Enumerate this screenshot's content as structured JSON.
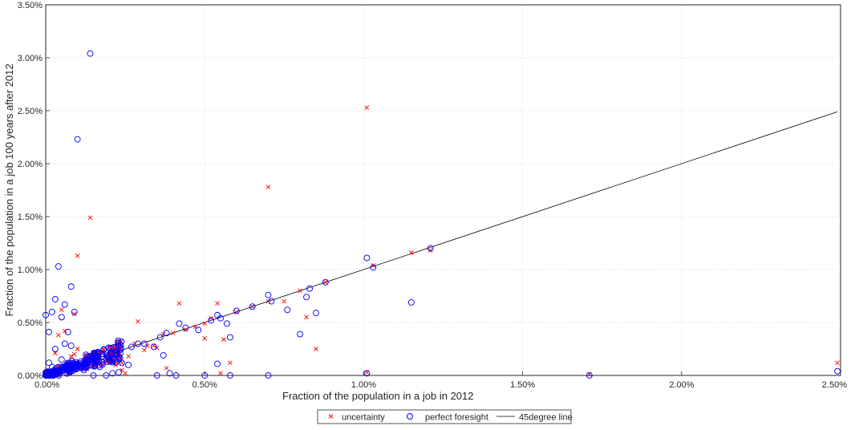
{
  "chart_data": {
    "type": "scatter",
    "xlabel": "Fraction of the population in a job in 2012",
    "ylabel": "Fraction of the population in a job 100 years after 2012",
    "xlim": [
      0,
      0.025
    ],
    "ylim": [
      0,
      0.035
    ],
    "x_ticks": [
      "0.00%",
      "0.50%",
      "1.00%",
      "1.50%",
      "2.00%",
      "2.50%"
    ],
    "y_ticks": [
      "0.00%",
      "0.50%",
      "1.00%",
      "1.50%",
      "2.00%",
      "2.50%",
      "3.00%",
      "3.50%"
    ],
    "grid": true,
    "legend_position": "bottom",
    "series": [
      {
        "name": "uncertainty",
        "marker": "x",
        "color": "#ff0000",
        "points": [
          [
            0.0001,
            0.0005
          ],
          [
            0.0002,
            0.0003
          ],
          [
            0.0003,
            0.0004
          ],
          [
            0.0003,
            0.0021
          ],
          [
            0.0004,
            0.0038
          ],
          [
            0.0005,
            0.0062
          ],
          [
            0.0006,
            0.0042
          ],
          [
            0.0007,
            0.0012
          ],
          [
            0.0008,
            0.0018
          ],
          [
            0.0009,
            0.002
          ],
          [
            0.0009,
            0.0058
          ],
          [
            0.001,
            0.0025
          ],
          [
            0.001,
            0.0113
          ],
          [
            0.0011,
            0.001
          ],
          [
            0.0012,
            0.0015
          ],
          [
            0.0013,
            0.0006
          ],
          [
            0.0014,
            0.0149
          ],
          [
            0.0015,
            0.0016
          ],
          [
            0.0016,
            0.0012
          ],
          [
            0.0018,
            0.0022
          ],
          [
            0.002,
            0.0027
          ],
          [
            0.0022,
            0.001
          ],
          [
            0.0024,
            0.0005
          ],
          [
            0.0025,
            0.0002
          ],
          [
            0.0026,
            0.0018
          ],
          [
            0.0028,
            0.003
          ],
          [
            0.0029,
            0.0051
          ],
          [
            0.0031,
            0.0024
          ],
          [
            0.0032,
            0.0028
          ],
          [
            0.0034,
            0.0028
          ],
          [
            0.0035,
            0.0026
          ],
          [
            0.0037,
            0.0039
          ],
          [
            0.0038,
            0.0007
          ],
          [
            0.004,
            0.004
          ],
          [
            0.0042,
            0.0068
          ],
          [
            0.0044,
            0.0043
          ],
          [
            0.0047,
            0.0046
          ],
          [
            0.005,
            0.0049
          ],
          [
            0.005,
            0.0035
          ],
          [
            0.0052,
            0.0054
          ],
          [
            0.0054,
            0.0068
          ],
          [
            0.0055,
            0.0002
          ],
          [
            0.0056,
            0.0034
          ],
          [
            0.0058,
            0.0012
          ],
          [
            0.006,
            0.006
          ],
          [
            0.0065,
            0.0065
          ],
          [
            0.007,
            0.0178
          ],
          [
            0.007,
            0.007
          ],
          [
            0.0075,
            0.007
          ],
          [
            0.008,
            0.008
          ],
          [
            0.0082,
            0.0055
          ],
          [
            0.0085,
            0.0025
          ],
          [
            0.0088,
            0.0088
          ],
          [
            0.0101,
            0.0253
          ],
          [
            0.0101,
            0.0003
          ],
          [
            0.0103,
            0.0104
          ],
          [
            0.0115,
            0.0116
          ],
          [
            0.0121,
            0.0118
          ],
          [
            0.0171,
            0.0001
          ],
          [
            0.0249,
            0.0012
          ]
        ]
      },
      {
        "name": "perfect foresight",
        "marker": "o",
        "color": "#0000ff",
        "points": [
          [
            0.0,
            0.0057
          ],
          [
            0.0001,
            0.0041
          ],
          [
            0.0001,
            0.0012
          ],
          [
            0.0002,
            0.006
          ],
          [
            0.0002,
            0.0008
          ],
          [
            0.0003,
            0.0072
          ],
          [
            0.0003,
            0.0025
          ],
          [
            0.0004,
            0.0103
          ],
          [
            0.0004,
            0.0004
          ],
          [
            0.0005,
            0.0055
          ],
          [
            0.0005,
            0.0015
          ],
          [
            0.0006,
            0.0067
          ],
          [
            0.0006,
            0.003
          ],
          [
            0.0007,
            0.0041
          ],
          [
            0.0008,
            0.0084
          ],
          [
            0.0008,
            0.0028
          ],
          [
            0.0009,
            0.006
          ],
          [
            0.001,
            0.0223
          ],
          [
            0.001,
            0.001
          ],
          [
            0.0011,
            0.0013
          ],
          [
            0.0012,
            0.0005
          ],
          [
            0.0013,
            0.0014
          ],
          [
            0.0014,
            0.0304
          ],
          [
            0.0014,
            0.0017
          ],
          [
            0.0015,
            0.0
          ],
          [
            0.0016,
            0.0016
          ],
          [
            0.0017,
            0.0008
          ],
          [
            0.0018,
            0.0018
          ],
          [
            0.0019,
            0.0
          ],
          [
            0.002,
            0.0019
          ],
          [
            0.0021,
            0.0002
          ],
          [
            0.0022,
            0.0021
          ],
          [
            0.0023,
            0.0003
          ],
          [
            0.0026,
            0.001
          ],
          [
            0.0027,
            0.0027
          ],
          [
            0.0029,
            0.003
          ],
          [
            0.0031,
            0.003
          ],
          [
            0.0034,
            0.0027
          ],
          [
            0.0035,
            0.0
          ],
          [
            0.0036,
            0.0036
          ],
          [
            0.0037,
            0.0019
          ],
          [
            0.0038,
            0.004
          ],
          [
            0.0039,
            0.0002
          ],
          [
            0.0041,
            0.0
          ],
          [
            0.0042,
            0.0049
          ],
          [
            0.0044,
            0.0045
          ],
          [
            0.0048,
            0.0043
          ],
          [
            0.005,
            0.0
          ],
          [
            0.0052,
            0.0052
          ],
          [
            0.0054,
            0.0057
          ],
          [
            0.0054,
            0.0011
          ],
          [
            0.0055,
            0.0054
          ],
          [
            0.0057,
            0.0049
          ],
          [
            0.0058,
            0.0036
          ],
          [
            0.0058,
            0.0
          ],
          [
            0.006,
            0.0061
          ],
          [
            0.0065,
            0.0065
          ],
          [
            0.007,
            0.0076
          ],
          [
            0.007,
            0.0
          ],
          [
            0.0071,
            0.007
          ],
          [
            0.0076,
            0.0062
          ],
          [
            0.008,
            0.0039
          ],
          [
            0.0082,
            0.0074
          ],
          [
            0.0083,
            0.0082
          ],
          [
            0.0085,
            0.0059
          ],
          [
            0.0088,
            0.0088
          ],
          [
            0.0101,
            0.0111
          ],
          [
            0.0101,
            0.0002
          ],
          [
            0.0103,
            0.0102
          ],
          [
            0.0115,
            0.0069
          ],
          [
            0.0121,
            0.012
          ],
          [
            0.0171,
            0.0
          ],
          [
            0.0249,
            0.0004
          ]
        ]
      },
      {
        "name": "45degree line",
        "marker": "line",
        "color": "#000000",
        "points": [
          [
            0,
            0
          ],
          [
            0.0249,
            0.0249
          ]
        ]
      }
    ]
  }
}
